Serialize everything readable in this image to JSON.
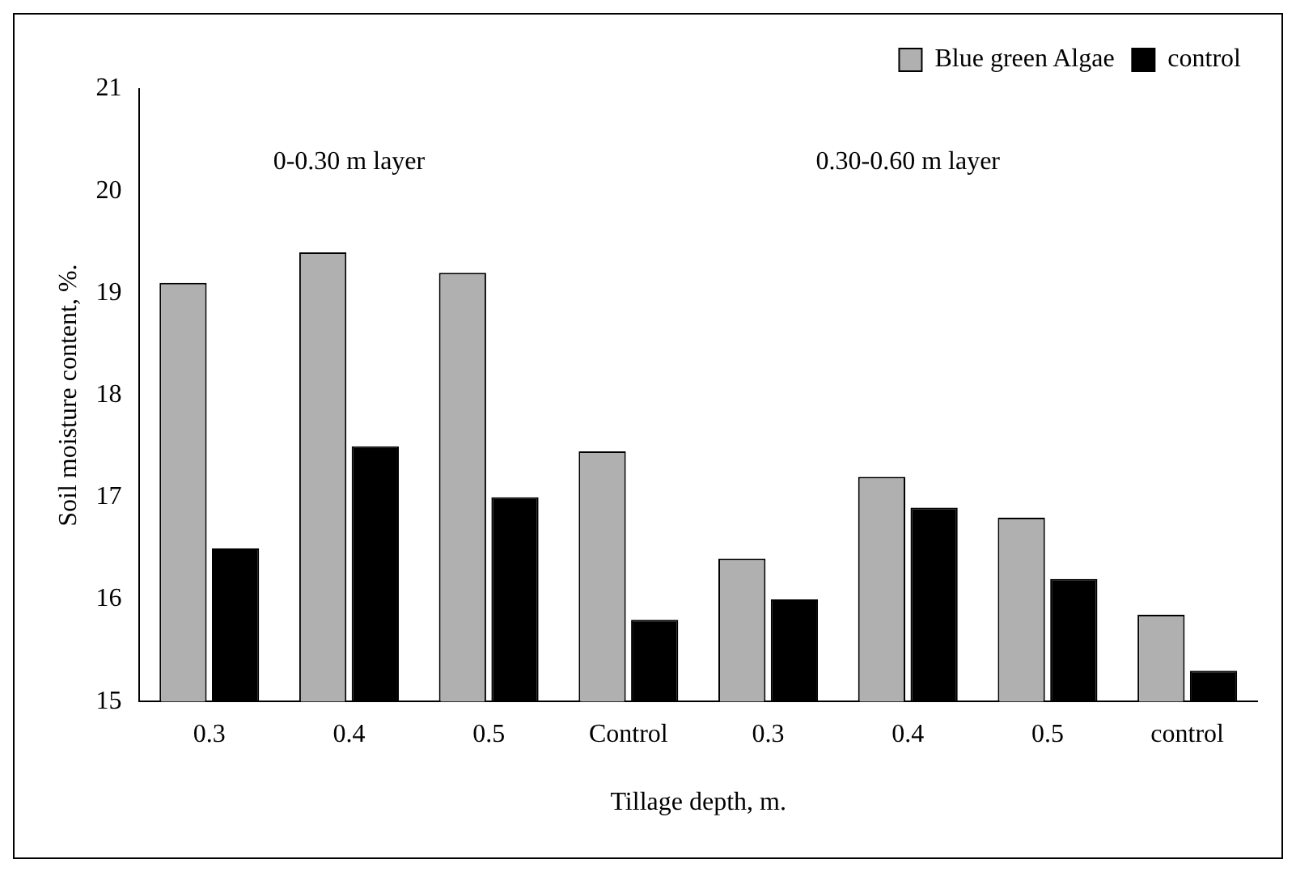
{
  "chart_data": {
    "type": "bar",
    "xlabel": "Tillage depth, m.",
    "ylabel": "Soil moisture content, %.",
    "categories": [
      "0.3",
      "0.4",
      "0.5",
      "Control",
      "0.3",
      "0.4",
      "0.5",
      "control"
    ],
    "series": [
      {
        "name": "Blue green Algae",
        "color": "#b0b0b0",
        "values": [
          19.1,
          19.4,
          19.2,
          17.45,
          16.4,
          17.2,
          16.8,
          15.85
        ]
      },
      {
        "name": "control",
        "color": "#000000",
        "values": [
          16.5,
          17.5,
          17.0,
          15.8,
          16.0,
          16.9,
          16.2,
          15.3
        ]
      }
    ],
    "ylim": [
      15,
      21
    ],
    "yticks": [
      15,
      16,
      17,
      18,
      19,
      20,
      21
    ],
    "grid": false,
    "legend": "top right",
    "annotations": [
      "0-0.30 m layer",
      "0.30-0.60 m layer"
    ]
  }
}
